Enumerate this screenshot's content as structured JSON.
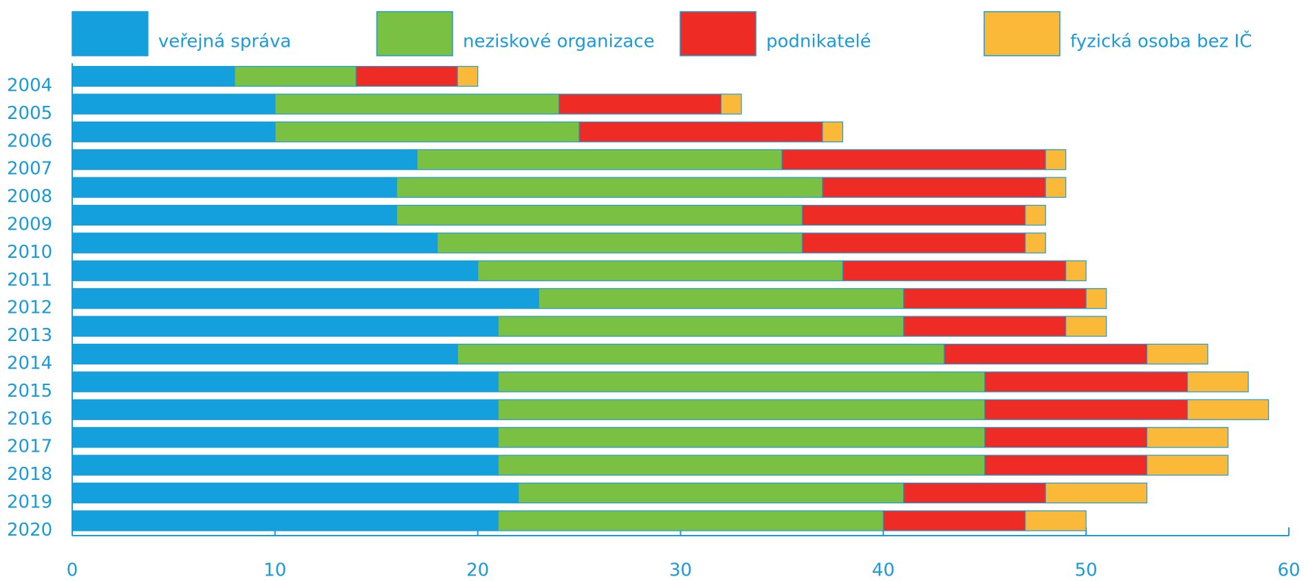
{
  "chart_data": {
    "type": "bar",
    "orientation": "horizontal",
    "stacked": true,
    "categories": [
      "2004",
      "2005",
      "2006",
      "2007",
      "2008",
      "2009",
      "2010",
      "2011",
      "2012",
      "2013",
      "2014",
      "2015",
      "2016",
      "2017",
      "2018",
      "2019",
      "2020"
    ],
    "series": [
      {
        "name": "veřejná správa",
        "color": "#14a0dc",
        "values": [
          8,
          10,
          10,
          17,
          16,
          16,
          18,
          20,
          23,
          21,
          19,
          21,
          21,
          21,
          21,
          22,
          21
        ]
      },
      {
        "name": "neziskové organizace",
        "color": "#7ac143",
        "values": [
          6,
          14,
          15,
          18,
          21,
          20,
          18,
          18,
          18,
          20,
          24,
          24,
          24,
          24,
          24,
          19,
          19
        ]
      },
      {
        "name": "podnikatelé",
        "color": "#ee2b24",
        "values": [
          5,
          8,
          12,
          13,
          11,
          11,
          11,
          11,
          9,
          8,
          10,
          10,
          10,
          8,
          8,
          7,
          7
        ]
      },
      {
        "name": "fyzická osoba bez IČ",
        "color": "#fbb93a",
        "values": [
          1,
          1,
          1,
          1,
          1,
          1,
          1,
          1,
          1,
          2,
          3,
          3,
          4,
          4,
          4,
          5,
          3
        ]
      }
    ],
    "xlim": [
      0,
      60
    ],
    "xticks": [
      0,
      10,
      20,
      30,
      40,
      50,
      60
    ],
    "grid": false
  }
}
